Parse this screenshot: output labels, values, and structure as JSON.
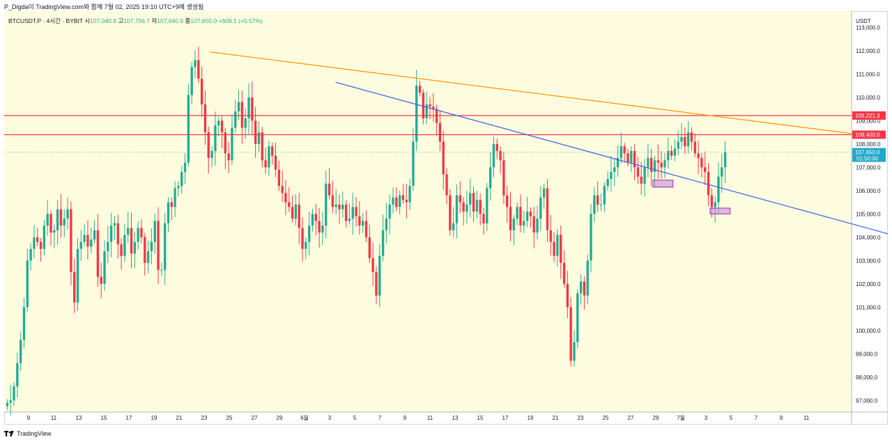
{
  "header": {
    "text": "P_Digda이 TradingView.com와 함께 7월 02, 2025 19:10 UTC+9에 생성됨"
  },
  "legend": {
    "symbol": "BTCUSDT.P · 4시간 · BYBIT",
    "open_label": "시",
    "open": "107,040.9",
    "high_label": "고",
    "high": "107,756.7",
    "low_label": "저",
    "low": "107,040.9",
    "close_label": "종",
    "close": "107,650.0",
    "change": "+609.1 (+0.57%)"
  },
  "footer": {
    "brand": "TradingView"
  },
  "colors": {
    "background": "#fefcdf",
    "up": "#22ab94",
    "down": "#f23645",
    "orange_line": "#ff9800",
    "blue_line": "#3d6ae8",
    "red_line": "#f23645",
    "box_fill": "#ce93d8",
    "box_stroke": "#9c27b0",
    "price_badge": "#22a7c8"
  },
  "chart_data": {
    "type": "candlestick",
    "currency_label": "USDT",
    "ylim": [
      96500,
      113700
    ],
    "y_ticks": [
      "113,000.0",
      "112,000.0",
      "111,000.0",
      "110,000.0",
      "109,000.0",
      "108,000.0",
      "107,000.0",
      "106,000.0",
      "105,000.0",
      "104,000.0",
      "103,000.0",
      "102,000.0",
      "101,000.0",
      "100,000.0",
      "99,000.0",
      "98,000.0",
      "97,000.0"
    ],
    "x_ticks": [
      "9",
      "11",
      "13",
      "15",
      "17",
      "19",
      "21",
      "23",
      "25",
      "27",
      "29",
      "6월",
      "3",
      "5",
      "7",
      "9",
      "11",
      "13",
      "15",
      "17",
      "19",
      "21",
      "23",
      "25",
      "27",
      "29",
      "7월",
      "3",
      "5",
      "7",
      "9",
      "11"
    ],
    "price_path": [
      96900,
      97000,
      97600,
      98600,
      99600,
      101000,
      103000,
      103500,
      104000,
      103800,
      103500,
      104500,
      105000,
      104200,
      104300,
      105200,
      104500,
      104800,
      105200,
      102500,
      101200,
      103500,
      103800,
      104100,
      103600,
      103900,
      104300,
      102300,
      102000,
      103400,
      103800,
      104500,
      104600,
      103700,
      103200,
      104100,
      104400,
      103300,
      103800,
      104400,
      104000,
      102900,
      103400,
      103800,
      104700,
      102600,
      102600,
      104600,
      105500,
      105300,
      106100,
      106200,
      106800,
      107200,
      110100,
      111300,
      111600,
      110800,
      109700,
      108500,
      107400,
      107700,
      108800,
      109000,
      108500,
      107600,
      107300,
      108700,
      109400,
      109800,
      108700,
      109100,
      110000,
      109000,
      108000,
      108500,
      107300,
      107000,
      107900,
      107500,
      106900,
      106200,
      105900,
      105500,
      105300,
      104800,
      105400,
      104400,
      103500,
      103800,
      104500,
      105000,
      104700,
      104200,
      104500,
      106300,
      105800,
      105300,
      105400,
      105200,
      105400,
      104700,
      104800,
      105300,
      104900,
      104500,
      104700,
      104000,
      103100,
      102500,
      101500,
      103200,
      104300,
      104800,
      105400,
      105700,
      105300,
      105800,
      105600,
      105500,
      106200,
      108100,
      110500,
      110200,
      109100,
      109700,
      109600,
      109500,
      108900,
      108100,
      106700,
      105800,
      104300,
      104600,
      105800,
      105500,
      105100,
      105400,
      105900,
      105100,
      105600,
      105000,
      104600,
      106100,
      107000,
      108000,
      107700,
      107300,
      105800,
      105300,
      104300,
      104800,
      105300,
      104500,
      104700,
      105100,
      104900,
      104200,
      104800,
      105700,
      106100,
      104300,
      103800,
      103200,
      104100,
      102900,
      102000,
      101000,
      98700,
      99500,
      101600,
      102100,
      101500,
      103000,
      105000,
      105800,
      105400,
      105400,
      106200,
      106500,
      106800,
      107000,
      107400,
      107900,
      107600,
      107200,
      107700,
      107000,
      106600,
      106300,
      107000,
      107400,
      106800,
      107300,
      107200,
      107000,
      107300,
      107700,
      107500,
      107800,
      108100,
      108300,
      107900,
      108500,
      108100,
      107600,
      107400,
      107000,
      106800,
      105800,
      105300,
      105500,
      106600,
      107000,
      107650
    ],
    "trendlines": [
      {
        "name": "orange-downtrend",
        "from": [
          22.8,
          111950
        ],
        "to": [
          42.5,
          108300
        ]
      },
      {
        "name": "blue-downtrend",
        "from": [
          32.8,
          110650
        ],
        "to": [
          48.3,
          103400
        ]
      }
    ],
    "horizontal_levels": [
      {
        "name": "level-109221",
        "value": 109221.3,
        "label": "109,221.3"
      },
      {
        "name": "level-108400",
        "value": 108400.0,
        "label": "108,400.0"
      }
    ],
    "highlight_boxes": [
      {
        "name": "support-box-1",
        "x0": 28.0,
        "x1": 28.8,
        "y0": 106150,
        "y1": 106450
      },
      {
        "name": "support-box-2",
        "x0": 2.2,
        "x1": 3.0,
        "y0": 105000,
        "y1": 105250
      }
    ],
    "last_price": {
      "label": "107,650.0",
      "countdown": "01:50:00",
      "value": 107650.0
    }
  }
}
